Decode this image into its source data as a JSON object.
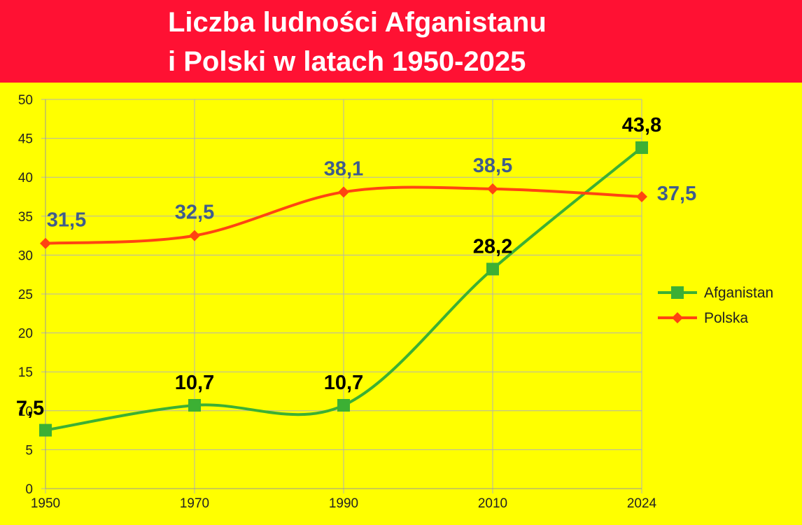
{
  "header": {
    "title_line1": "Liczba ludności Afganistanu",
    "title_line2": "i Polski w latach 1950-2025",
    "background": "#ff1133"
  },
  "chart_data": {
    "type": "line",
    "title": "Liczba ludności Afganistanu i Polski w latach 1950-2025",
    "xlabel": "",
    "ylabel": "",
    "categories": [
      "1950",
      "1970",
      "1990",
      "2010",
      "2024"
    ],
    "ylim": [
      0,
      50
    ],
    "yticks": [
      0,
      5,
      10,
      15,
      20,
      25,
      30,
      35,
      40,
      45,
      50
    ],
    "grid": true,
    "smooth": true,
    "legend_position": "right",
    "background": "#ffff00",
    "series": [
      {
        "name": "Afganistan",
        "values": [
          7.5,
          10.7,
          10.7,
          28.2,
          43.8
        ],
        "labels": [
          "7,5",
          "10,7",
          "10,7",
          "28,2",
          "43,8"
        ],
        "color": "#3cb034",
        "label_color": "#000000",
        "marker": "square"
      },
      {
        "name": "Polska",
        "values": [
          31.5,
          32.5,
          38.1,
          38.5,
          37.5
        ],
        "labels": [
          "31,5",
          "32,5",
          "38,1",
          "38,5",
          "37,5"
        ],
        "color": "#ff4411",
        "label_color": "#3f5c8c",
        "marker": "diamond"
      }
    ]
  }
}
